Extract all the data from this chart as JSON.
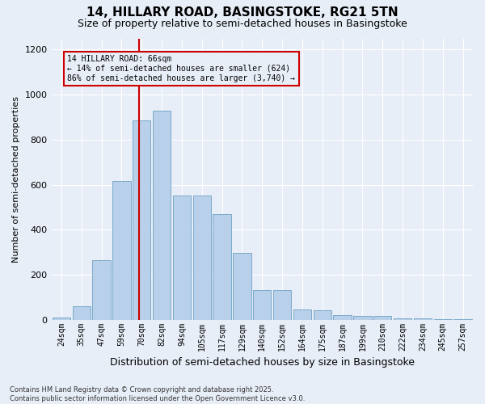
{
  "title1": "14, HILLARY ROAD, BASINGSTOKE, RG21 5TN",
  "title2": "Size of property relative to semi-detached houses in Basingstoke",
  "xlabel": "Distribution of semi-detached houses by size in Basingstoke",
  "ylabel": "Number of semi-detached properties",
  "categories": [
    "24sqm",
    "35sqm",
    "47sqm",
    "59sqm",
    "70sqm",
    "82sqm",
    "94sqm",
    "105sqm",
    "117sqm",
    "129sqm",
    "140sqm",
    "152sqm",
    "164sqm",
    "175sqm",
    "187sqm",
    "199sqm",
    "210sqm",
    "222sqm",
    "234sqm",
    "245sqm",
    "257sqm"
  ],
  "values": [
    10,
    60,
    265,
    615,
    885,
    930,
    550,
    550,
    470,
    295,
    130,
    130,
    45,
    40,
    20,
    15,
    15,
    5,
    5,
    2,
    2
  ],
  "bar_color": "#b8d0ea",
  "bar_edge_color": "#7aaac8",
  "vline_color": "#cc0000",
  "vline_pos": 3.85,
  "annotation_title": "14 HILLARY ROAD: 66sqm",
  "annotation_line1": "← 14% of semi-detached houses are smaller (624)",
  "annotation_line2": "86% of semi-detached houses are larger (3,740) →",
  "annotation_box_color": "#cc0000",
  "ylim": [
    0,
    1250
  ],
  "yticks": [
    0,
    200,
    400,
    600,
    800,
    1000,
    1200
  ],
  "footer1": "Contains HM Land Registry data © Crown copyright and database right 2025.",
  "footer2": "Contains public sector information licensed under the Open Government Licence v3.0.",
  "background_color": "#e8eef8",
  "grid_color": "#ffffff",
  "title1_fontsize": 11,
  "title2_fontsize": 9,
  "xlabel_fontsize": 9,
  "ylabel_fontsize": 8,
  "tick_fontsize": 7,
  "annot_fontsize": 7,
  "footer_fontsize": 6
}
